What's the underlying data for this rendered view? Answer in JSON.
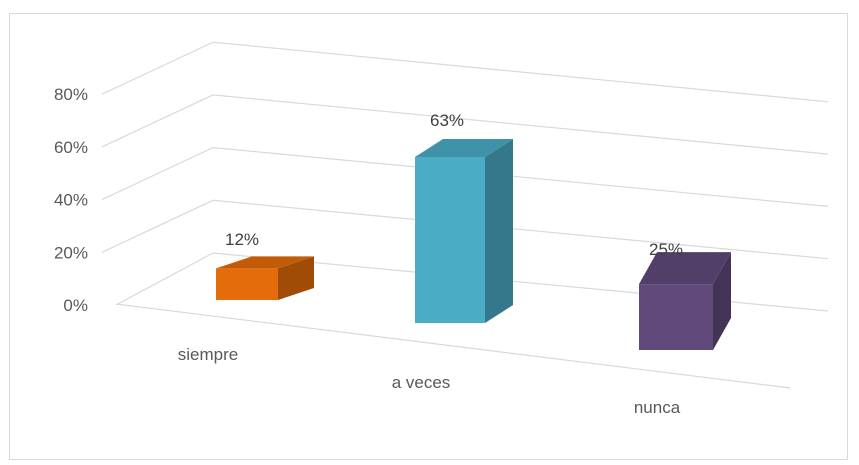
{
  "chart_data": {
    "type": "bar",
    "style": "3d-column",
    "categories": [
      "siempre",
      "a veces",
      "nunca"
    ],
    "values": [
      12,
      63,
      25
    ],
    "data_labels": [
      "12%",
      "63%",
      "25%"
    ],
    "yticks": [
      "0%",
      "20%",
      "40%",
      "60%",
      "80%"
    ],
    "ylim": [
      0,
      80
    ],
    "grid": true,
    "legend": "none",
    "colors": [
      "#e46c0a",
      "#4bacc6",
      "#604a7b"
    ]
  }
}
